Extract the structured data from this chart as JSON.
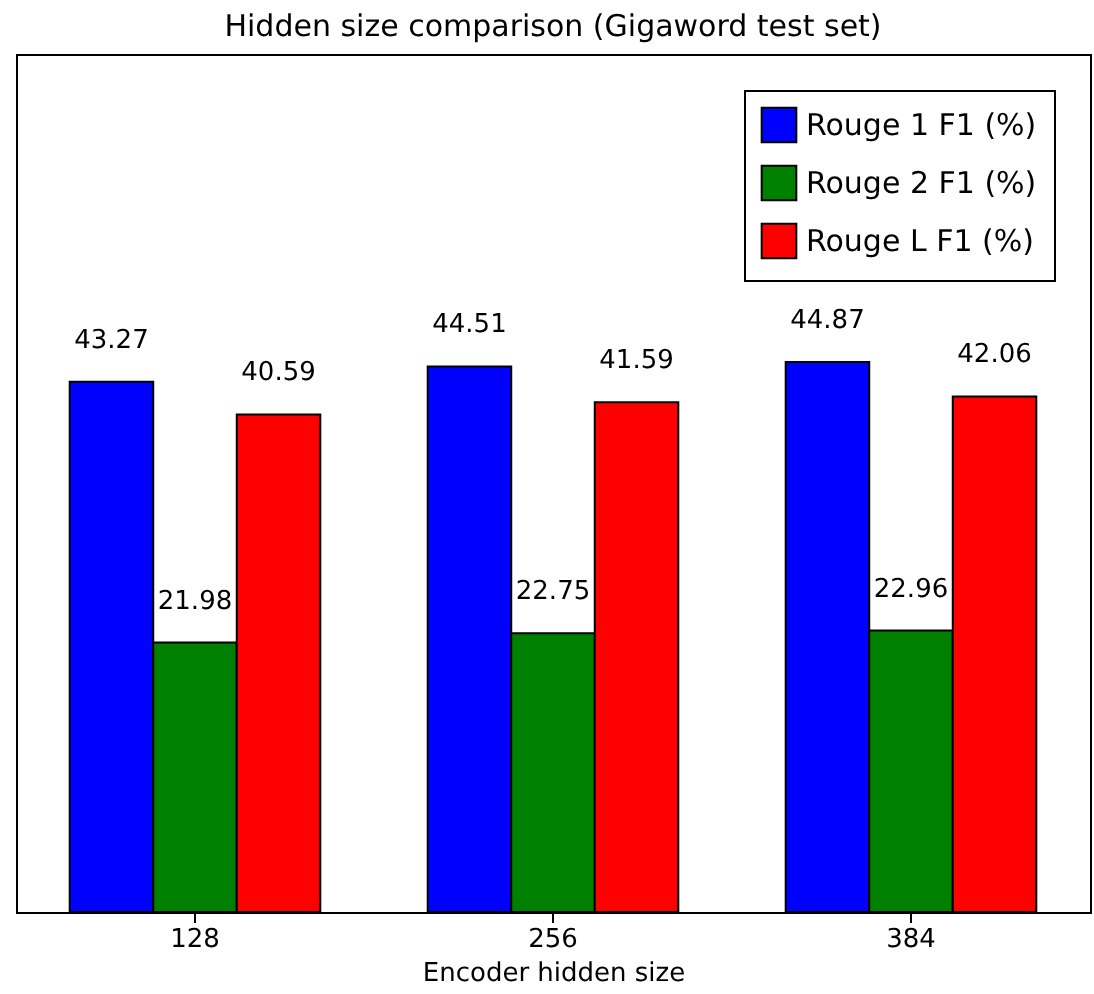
{
  "chart_data": {
    "type": "bar",
    "title": "Hidden size comparison (Gigaword test set)",
    "xlabel": "Encoder hidden size",
    "categories": [
      "128",
      "256",
      "384"
    ],
    "series": [
      {
        "name": "Rouge 1 F1 (%)",
        "color": "#0000ff",
        "values": [
          43.27,
          44.51,
          44.87
        ]
      },
      {
        "name": "Rouge 2 F1 (%)",
        "color": "#008000",
        "values": [
          21.98,
          22.75,
          22.96
        ]
      },
      {
        "name": "Rouge L F1 (%)",
        "color": "#ff0000",
        "values": [
          40.59,
          41.59,
          42.06
        ]
      }
    ],
    "ylim": [
      0,
      70
    ],
    "data_labels": true,
    "legend": "top right",
    "tick_labels": "x"
  }
}
